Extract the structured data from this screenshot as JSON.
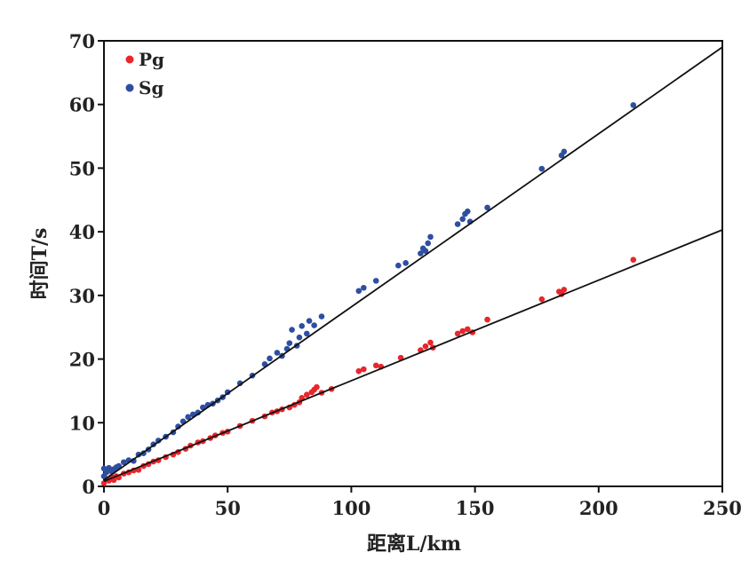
{
  "chart_data": {
    "type": "scatter",
    "title": "",
    "xlabel": "距离L/km",
    "ylabel": "时间T/s",
    "xlim": [
      0,
      250
    ],
    "ylim": [
      0,
      70
    ],
    "xticks": [
      "0",
      "50",
      "100",
      "150",
      "200",
      "250"
    ],
    "yticks": [
      "0",
      "10",
      "20",
      "30",
      "40",
      "50",
      "60",
      "70"
    ],
    "xtick_values": [
      0,
      50,
      100,
      150,
      200,
      250
    ],
    "ytick_values": [
      0,
      10,
      20,
      30,
      40,
      50,
      60,
      70
    ],
    "grid": false,
    "legend_position": "top-left",
    "series": [
      {
        "name": "Pg",
        "color": "#e8262b",
        "fit": {
          "intercept": 0.8,
          "slope": 0.158
        },
        "points": [
          [
            0,
            0.5
          ],
          [
            1,
            1.2
          ],
          [
            2,
            0.9
          ],
          [
            3,
            1.5
          ],
          [
            4,
            1.0
          ],
          [
            5,
            1.6
          ],
          [
            6,
            1.4
          ],
          [
            8,
            2.0
          ],
          [
            10,
            2.2
          ],
          [
            12,
            2.5
          ],
          [
            14,
            2.6
          ],
          [
            16,
            3.2
          ],
          [
            18,
            3.5
          ],
          [
            20,
            3.9
          ],
          [
            22,
            4.1
          ],
          [
            25,
            4.6
          ],
          [
            28,
            5.0
          ],
          [
            30,
            5.4
          ],
          [
            33,
            5.9
          ],
          [
            35,
            6.4
          ],
          [
            38,
            6.9
          ],
          [
            40,
            7.1
          ],
          [
            43,
            7.6
          ],
          [
            45,
            8.0
          ],
          [
            48,
            8.4
          ],
          [
            50,
            8.6
          ],
          [
            55,
            9.5
          ],
          [
            60,
            10.3
          ],
          [
            65,
            11.0
          ],
          [
            68,
            11.6
          ],
          [
            70,
            11.8
          ],
          [
            72,
            12.1
          ],
          [
            75,
            12.4
          ],
          [
            77,
            12.8
          ],
          [
            79,
            13.2
          ],
          [
            80,
            13.9
          ],
          [
            82,
            14.4
          ],
          [
            84,
            14.8
          ],
          [
            85,
            15.2
          ],
          [
            86,
            15.6
          ],
          [
            88,
            14.7
          ],
          [
            92,
            15.3
          ],
          [
            103,
            18.1
          ],
          [
            105,
            18.4
          ],
          [
            110,
            19.0
          ],
          [
            112,
            18.8
          ],
          [
            120,
            20.2
          ],
          [
            128,
            21.4
          ],
          [
            130,
            22.0
          ],
          [
            132,
            22.6
          ],
          [
            133,
            21.8
          ],
          [
            143,
            24.0
          ],
          [
            145,
            24.4
          ],
          [
            147,
            24.7
          ],
          [
            149,
            24.2
          ],
          [
            155,
            26.2
          ],
          [
            177,
            29.4
          ],
          [
            184,
            30.6
          ],
          [
            185,
            30.2
          ],
          [
            186,
            30.9
          ],
          [
            214,
            35.6
          ]
        ]
      },
      {
        "name": "Sg",
        "color": "#2e4ea0",
        "fit": {
          "intercept": 1.0,
          "slope": 0.272
        },
        "points": [
          [
            0,
            1.6
          ],
          [
            0,
            2.8
          ],
          [
            1,
            2.2
          ],
          [
            2,
            2.9
          ],
          [
            3,
            2.4
          ],
          [
            4,
            2.7
          ],
          [
            5,
            3.0
          ],
          [
            6,
            3.2
          ],
          [
            8,
            3.8
          ],
          [
            10,
            4.1
          ],
          [
            12,
            4.0
          ],
          [
            14,
            5.0
          ],
          [
            16,
            5.2
          ],
          [
            18,
            5.8
          ],
          [
            20,
            6.6
          ],
          [
            22,
            7.2
          ],
          [
            25,
            7.8
          ],
          [
            28,
            8.5
          ],
          [
            30,
            9.4
          ],
          [
            32,
            10.2
          ],
          [
            34,
            10.9
          ],
          [
            36,
            11.3
          ],
          [
            38,
            11.6
          ],
          [
            40,
            12.4
          ],
          [
            42,
            12.8
          ],
          [
            44,
            13.0
          ],
          [
            46,
            13.5
          ],
          [
            48,
            14.0
          ],
          [
            50,
            14.8
          ],
          [
            55,
            16.2
          ],
          [
            60,
            17.4
          ],
          [
            65,
            19.2
          ],
          [
            67,
            20.1
          ],
          [
            70,
            21.0
          ],
          [
            72,
            20.5
          ],
          [
            74,
            21.6
          ],
          [
            75,
            22.5
          ],
          [
            76,
            24.6
          ],
          [
            78,
            22.1
          ],
          [
            79,
            23.4
          ],
          [
            80,
            25.2
          ],
          [
            82,
            24.0
          ],
          [
            83,
            26.0
          ],
          [
            85,
            25.3
          ],
          [
            88,
            26.7
          ],
          [
            103,
            30.7
          ],
          [
            105,
            31.2
          ],
          [
            110,
            32.3
          ],
          [
            119,
            34.7
          ],
          [
            122,
            35.1
          ],
          [
            128,
            36.6
          ],
          [
            129,
            37.4
          ],
          [
            130,
            37.0
          ],
          [
            131,
            38.2
          ],
          [
            132,
            39.2
          ],
          [
            143,
            41.2
          ],
          [
            145,
            42.0
          ],
          [
            146,
            42.8
          ],
          [
            147,
            43.2
          ],
          [
            148,
            41.6
          ],
          [
            155,
            43.8
          ],
          [
            177,
            49.9
          ],
          [
            185,
            52.0
          ],
          [
            186,
            52.6
          ],
          [
            214,
            59.9
          ]
        ]
      }
    ]
  }
}
